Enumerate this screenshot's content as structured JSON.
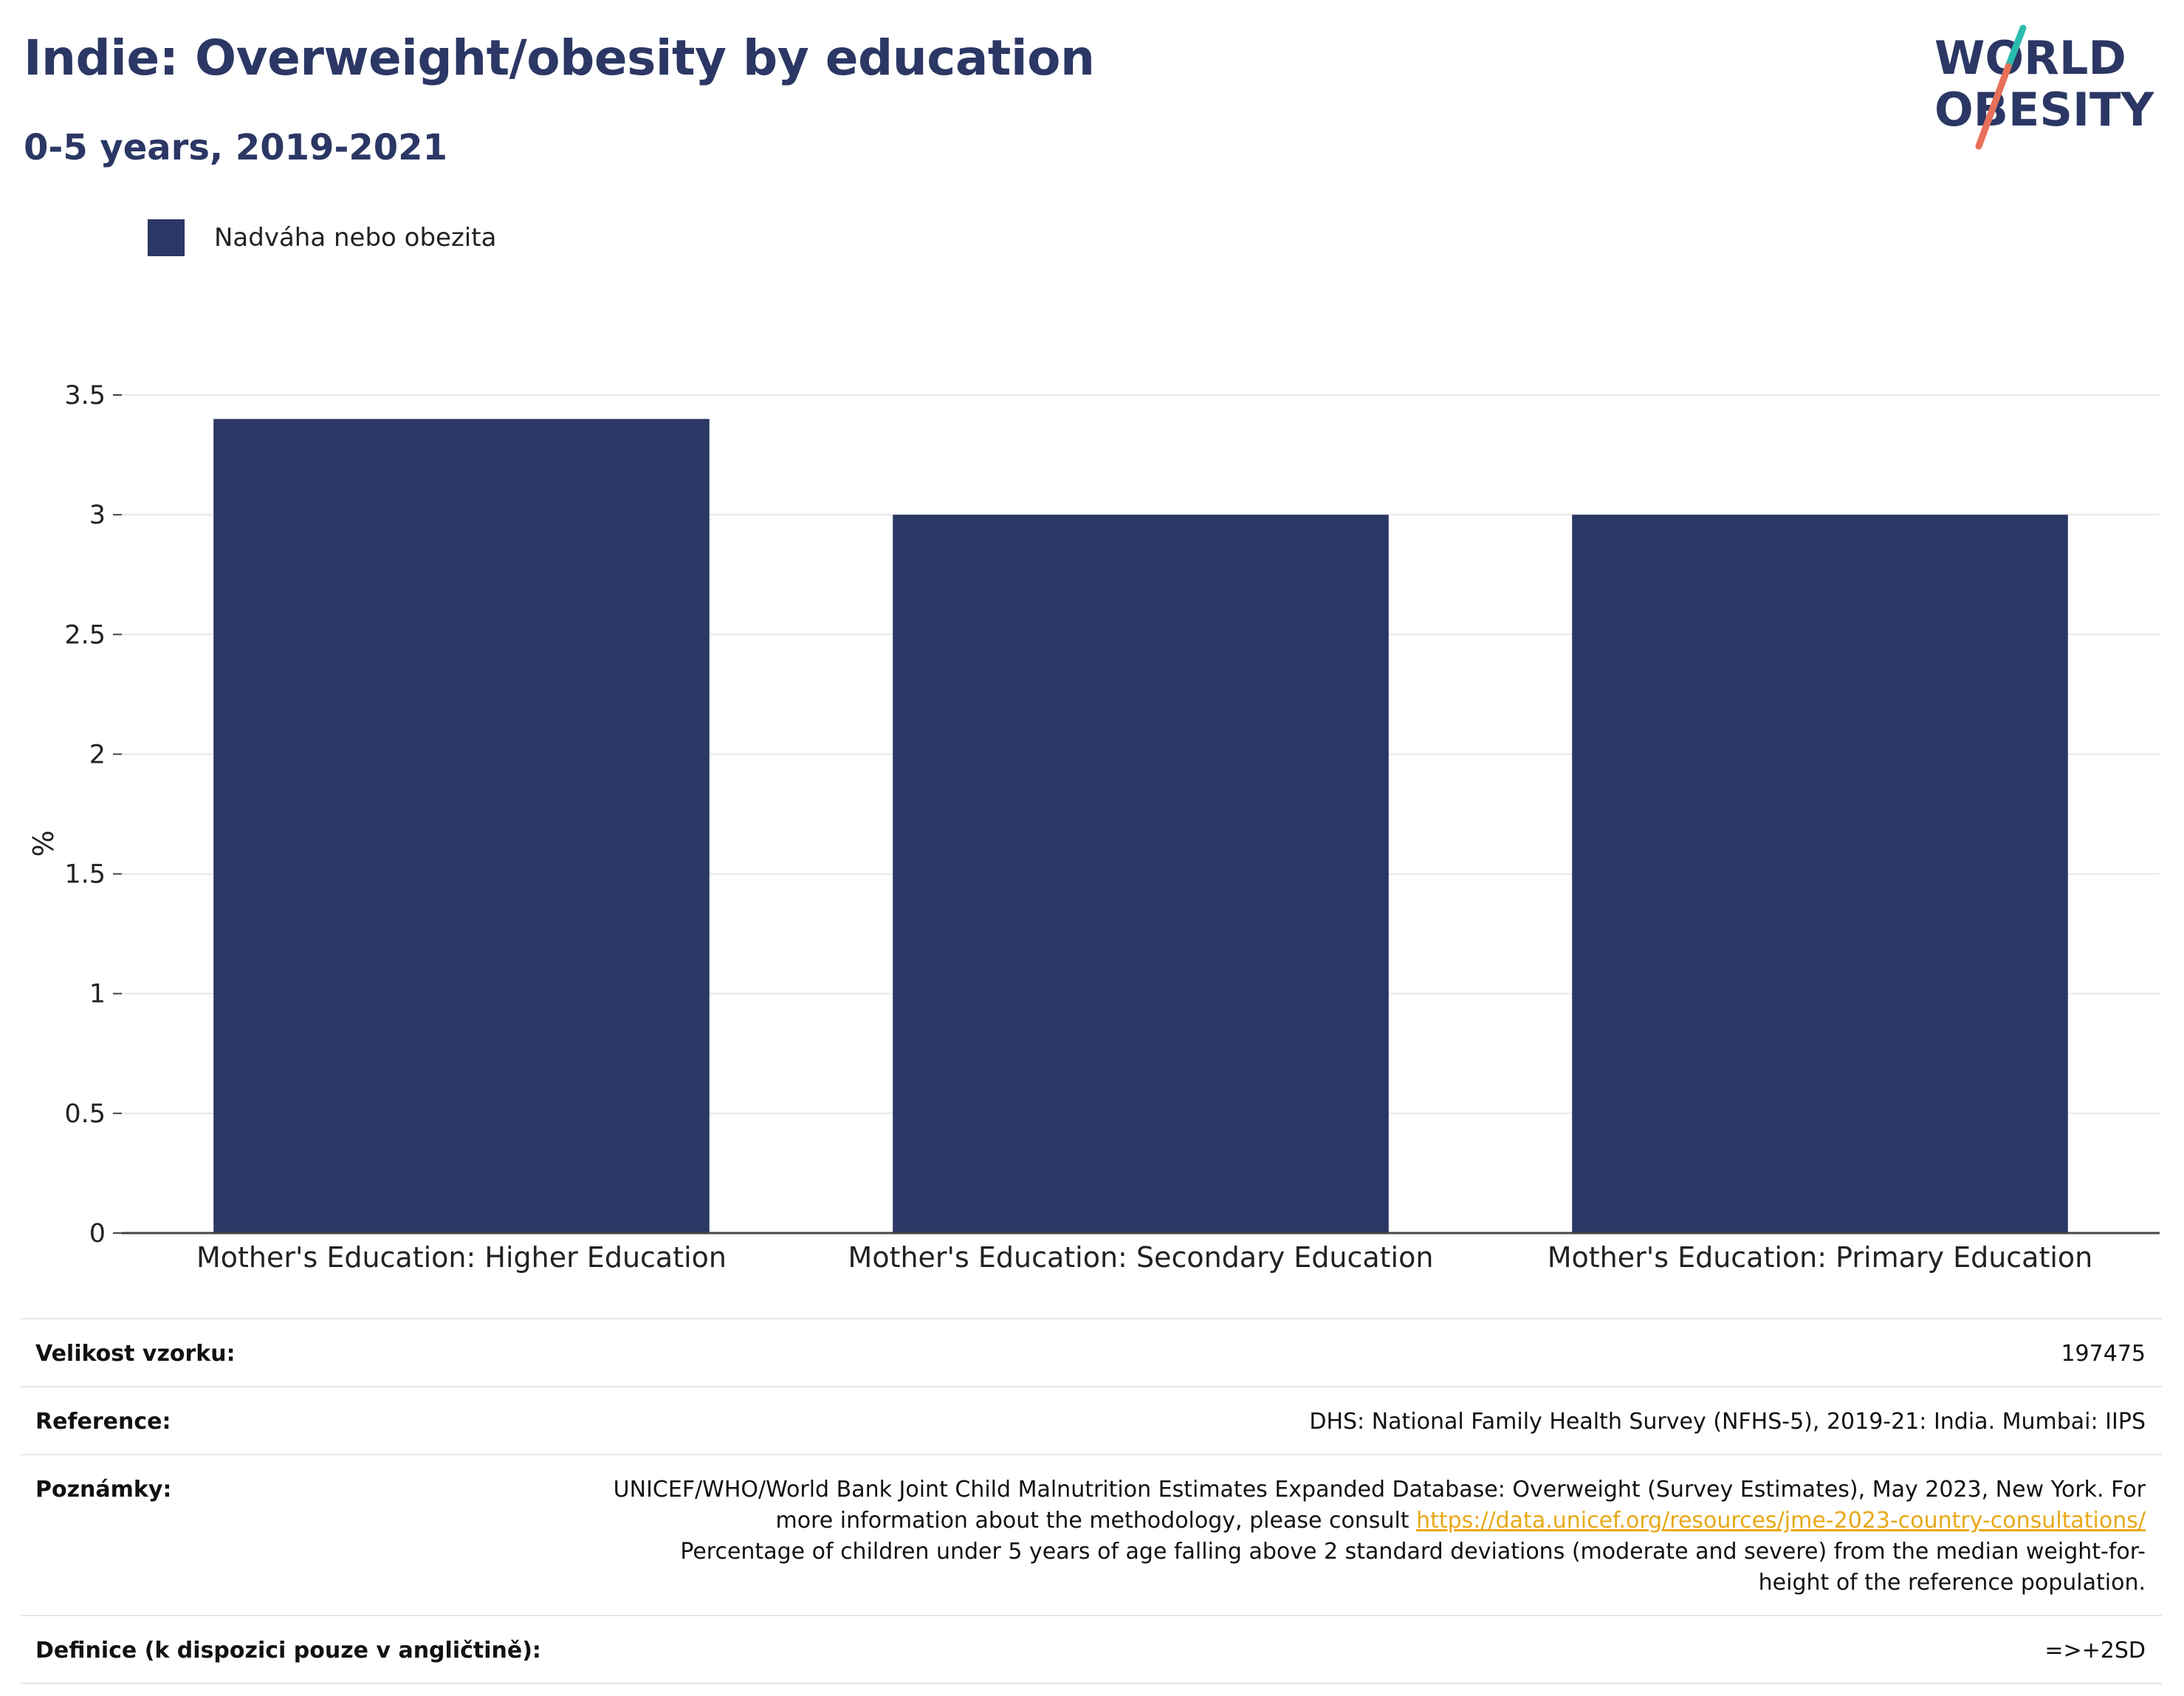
{
  "header": {
    "title": "Indie: Overweight/obesity by education",
    "subtitle": "0-5 years, 2019-2021"
  },
  "logo": {
    "line1": "WORLD",
    "line2": "OBESITY",
    "colors": {
      "text": "#2b3764",
      "accent_teal": "#2bbbad",
      "accent_coral": "#e8705a"
    }
  },
  "legend": {
    "label": "Nadváha nebo obezita",
    "placement": "top-left"
  },
  "chart_data": {
    "type": "bar",
    "categories": [
      "Mother's Education: Higher Education",
      "Mother's Education: Secondary Education",
      "Mother's Education: Primary Education"
    ],
    "series": [
      {
        "name": "Nadváha nebo obezita",
        "values": [
          3.4,
          3.0,
          3.0
        ],
        "color": "#2b3764"
      }
    ],
    "ylabel": "%",
    "xlabel": "",
    "ylim": [
      0,
      3.5
    ],
    "yticks": [
      0,
      0.5,
      1,
      1.5,
      2,
      2.5,
      3,
      3.5
    ],
    "ytick_labels": [
      "0",
      "0.5",
      "1",
      "1.5",
      "2",
      "2.5",
      "3",
      "3.5"
    ],
    "grid": true
  },
  "info": {
    "sample": {
      "key": "Velikost vzorku:",
      "value": "197475"
    },
    "reference": {
      "key": "Reference:",
      "value": "DHS: National Family Health Survey (NFHS-5), 2019-21: India. Mumbai: IIPS"
    },
    "notes": {
      "key": "Poznámky:",
      "text1": "UNICEF/WHO/World Bank Joint Child Malnutrition Estimates Expanded Database: Overweight (Survey Estimates), May 2023, New York. For more information about the methodology, please consult ",
      "link": "https://data.unicef.org/resources/jme-2023-country-consultations/",
      "text2": "Percentage of children under 5 years of age falling above 2 standard deviations (moderate and severe) from the median weight-for-height of the reference population."
    },
    "definition": {
      "key": "Definice (k dispozici pouze v angličtině):",
      "value": "=>+2SD"
    }
  }
}
